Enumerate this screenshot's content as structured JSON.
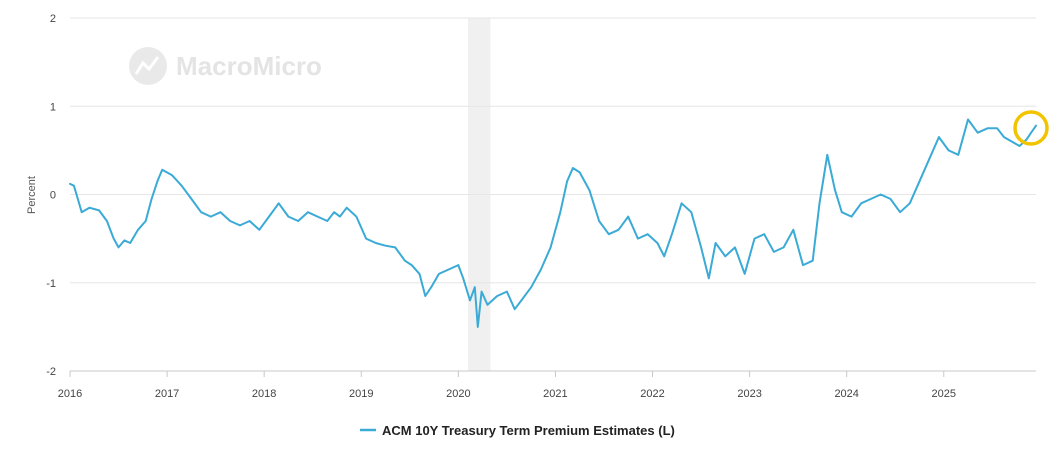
{
  "watermark": "MacroMicro",
  "chart_data": {
    "type": "line",
    "title": "",
    "xlabel": "",
    "ylabel": "Percent",
    "ylim": [
      -2,
      2
    ],
    "yticks": [
      "2",
      "1",
      "0",
      "-1",
      "-2"
    ],
    "xlim": [
      2016.0,
      2025.95
    ],
    "xticks": [
      "2016",
      "2017",
      "2018",
      "2019",
      "2020",
      "2021",
      "2022",
      "2023",
      "2024",
      "2025"
    ],
    "recession_band": [
      2020.1,
      2020.33
    ],
    "legend": {
      "position": "bottom-center"
    },
    "colors": {
      "series": "#3aaad6",
      "recession": "#f0f0f0",
      "grid": "#e6e6e6",
      "highlight": "#f2c400"
    },
    "series": [
      {
        "name": "ACM 10Y Treasury Term Premium Estimates (L)",
        "x": [
          2016.0,
          2016.04,
          2016.08,
          2016.12,
          2016.2,
          2016.3,
          2016.38,
          2016.45,
          2016.5,
          2016.56,
          2016.62,
          2016.7,
          2016.78,
          2016.84,
          2016.9,
          2016.95,
          2017.05,
          2017.15,
          2017.25,
          2017.35,
          2017.45,
          2017.55,
          2017.65,
          2017.75,
          2017.85,
          2017.95,
          2018.05,
          2018.15,
          2018.25,
          2018.35,
          2018.45,
          2018.55,
          2018.65,
          2018.72,
          2018.78,
          2018.85,
          2018.95,
          2019.05,
          2019.15,
          2019.25,
          2019.35,
          2019.45,
          2019.52,
          2019.6,
          2019.66,
          2019.72,
          2019.8,
          2019.9,
          2020.0,
          2020.05,
          2020.12,
          2020.17,
          2020.2,
          2020.24,
          2020.3,
          2020.4,
          2020.5,
          2020.58,
          2020.65,
          2020.75,
          2020.85,
          2020.95,
          2021.05,
          2021.12,
          2021.18,
          2021.25,
          2021.35,
          2021.45,
          2021.55,
          2021.65,
          2021.75,
          2021.85,
          2021.95,
          2022.05,
          2022.12,
          2022.2,
          2022.3,
          2022.4,
          2022.5,
          2022.58,
          2022.65,
          2022.75,
          2022.85,
          2022.95,
          2023.05,
          2023.15,
          2023.25,
          2023.35,
          2023.45,
          2023.55,
          2023.65,
          2023.72,
          2023.8,
          2023.88,
          2023.95,
          2024.05,
          2024.15,
          2024.25,
          2024.35,
          2024.45,
          2024.55,
          2024.65,
          2024.75,
          2024.85,
          2024.95,
          2025.05,
          2025.15,
          2025.25,
          2025.35,
          2025.45,
          2025.55,
          2025.62,
          2025.7,
          2025.78,
          2025.85,
          2025.9,
          2025.95
        ],
        "y": [
          0.12,
          0.1,
          -0.05,
          -0.2,
          -0.15,
          -0.18,
          -0.3,
          -0.5,
          -0.6,
          -0.52,
          -0.55,
          -0.4,
          -0.3,
          -0.05,
          0.15,
          0.28,
          0.22,
          0.1,
          -0.05,
          -0.2,
          -0.25,
          -0.2,
          -0.3,
          -0.35,
          -0.3,
          -0.4,
          -0.25,
          -0.1,
          -0.25,
          -0.3,
          -0.2,
          -0.25,
          -0.3,
          -0.2,
          -0.25,
          -0.15,
          -0.25,
          -0.5,
          -0.55,
          -0.58,
          -0.6,
          -0.75,
          -0.8,
          -0.9,
          -1.15,
          -1.05,
          -0.9,
          -0.85,
          -0.8,
          -0.95,
          -1.2,
          -1.05,
          -1.5,
          -1.1,
          -1.25,
          -1.15,
          -1.1,
          -1.3,
          -1.2,
          -1.05,
          -0.85,
          -0.6,
          -0.2,
          0.15,
          0.3,
          0.25,
          0.05,
          -0.3,
          -0.45,
          -0.4,
          -0.25,
          -0.5,
          -0.45,
          -0.55,
          -0.7,
          -0.45,
          -0.1,
          -0.2,
          -0.6,
          -0.95,
          -0.55,
          -0.7,
          -0.6,
          -0.9,
          -0.5,
          -0.45,
          -0.65,
          -0.6,
          -0.4,
          -0.8,
          -0.75,
          -0.1,
          0.45,
          0.05,
          -0.2,
          -0.25,
          -0.1,
          -0.05,
          0.0,
          -0.05,
          -0.2,
          -0.1,
          0.15,
          0.4,
          0.65,
          0.5,
          0.45,
          0.85,
          0.7,
          0.75,
          0.75,
          0.65,
          0.6,
          0.55,
          0.62,
          0.7,
          0.78
        ]
      }
    ]
  }
}
